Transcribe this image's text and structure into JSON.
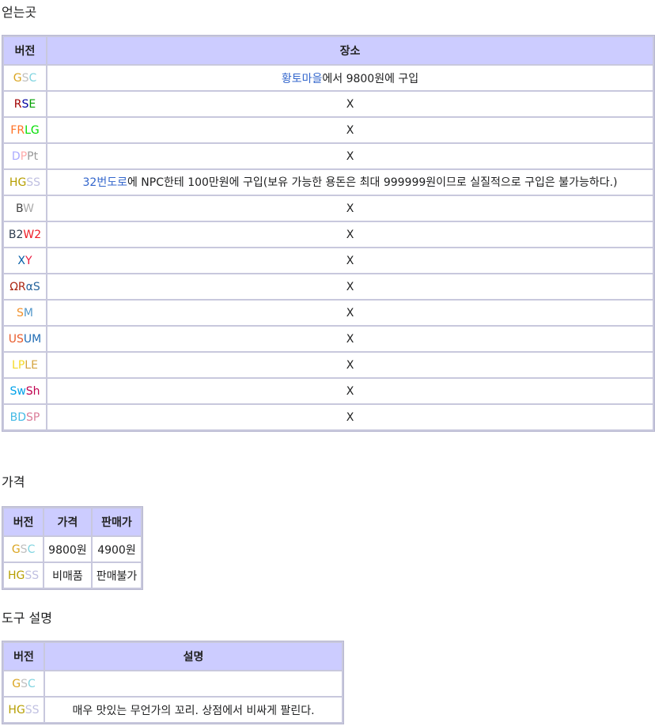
{
  "sections": {
    "obtain_title": "얻는곳",
    "price_title": "가격",
    "desc_title": "도구 설명"
  },
  "obtain_table": {
    "headers": [
      "버전",
      "장소"
    ],
    "rows": [
      {
        "version": [
          {
            "t": "G",
            "c": "#DAA520"
          },
          {
            "t": "S",
            "c": "#C0C0C0"
          },
          {
            "t": "C",
            "c": "#7FD4E0"
          }
        ],
        "place_link": "황토마을",
        "place_rest": "에서 9800원에 구입"
      },
      {
        "version": [
          {
            "t": "R",
            "c": "#A00000"
          },
          {
            "t": "S",
            "c": "#0000A0"
          },
          {
            "t": "E",
            "c": "#00A000"
          }
        ],
        "place_link": "",
        "place_rest": "X"
      },
      {
        "version": [
          {
            "t": "FR",
            "c": "#FF7327"
          },
          {
            "t": "LG",
            "c": "#00DD00"
          }
        ],
        "place_link": "",
        "place_rest": "X"
      },
      {
        "version": [
          {
            "t": "D",
            "c": "#AAAAFF"
          },
          {
            "t": "P",
            "c": "#FFAAAA"
          },
          {
            "t": "Pt",
            "c": "#999999"
          }
        ],
        "place_link": "",
        "place_rest": "X"
      },
      {
        "version": [
          {
            "t": "H",
            "c": "#B69E00"
          },
          {
            "t": "G",
            "c": "#B69E00"
          },
          {
            "t": "SS",
            "c": "#C0C0E1"
          }
        ],
        "place_link": "32번도로",
        "place_rest": "에 NPC한테 100만원에 구입(보유 가능한 용돈은 최대 999999원이므로 실질적으로 구입은 불가능하다.)"
      },
      {
        "version": [
          {
            "t": "B",
            "c": "#444444"
          },
          {
            "t": "W",
            "c": "#AAAAAA"
          }
        ],
        "place_link": "",
        "place_rest": "X"
      },
      {
        "version": [
          {
            "t": "B2",
            "c": "#303E51"
          },
          {
            "t": "W2",
            "c": "#EE1C25"
          }
        ],
        "place_link": "",
        "place_rest": "X"
      },
      {
        "version": [
          {
            "t": "X",
            "c": "#025DA6"
          },
          {
            "t": "Y",
            "c": "#EA1A3E"
          }
        ],
        "place_link": "",
        "place_rest": "X"
      },
      {
        "version": [
          {
            "t": "ΩR",
            "c": "#AB2813"
          },
          {
            "t": "αS",
            "c": "#26649C"
          }
        ],
        "place_link": "",
        "place_rest": "X"
      },
      {
        "version": [
          {
            "t": "S",
            "c": "#F1912B"
          },
          {
            "t": "M",
            "c": "#5599CA"
          }
        ],
        "place_link": "",
        "place_rest": "X"
      },
      {
        "version": [
          {
            "t": "US",
            "c": "#E95B2B"
          },
          {
            "t": "UM",
            "c": "#226DB5"
          }
        ],
        "place_link": "",
        "place_rest": "X"
      },
      {
        "version": [
          {
            "t": "LP",
            "c": "#F5DA26"
          },
          {
            "t": "LE",
            "c": "#D4A33E"
          }
        ],
        "place_link": "",
        "place_rest": "X"
      },
      {
        "version": [
          {
            "t": "Sw",
            "c": "#00A1E9"
          },
          {
            "t": "Sh",
            "c": "#BF004F"
          }
        ],
        "place_link": "",
        "place_rest": "X"
      },
      {
        "version": [
          {
            "t": "BD",
            "c": "#44BAE5"
          },
          {
            "t": "SP",
            "c": "#DA7D99"
          }
        ],
        "place_link": "",
        "place_rest": "X"
      }
    ]
  },
  "price_table": {
    "headers": [
      "버전",
      "가격",
      "판매가"
    ],
    "rows": [
      {
        "version": [
          {
            "t": "G",
            "c": "#DAA520"
          },
          {
            "t": "S",
            "c": "#C0C0C0"
          },
          {
            "t": "C",
            "c": "#7FD4E0"
          }
        ],
        "price": "9800원",
        "sell": "4900원"
      },
      {
        "version": [
          {
            "t": "H",
            "c": "#B69E00"
          },
          {
            "t": "G",
            "c": "#B69E00"
          },
          {
            "t": "SS",
            "c": "#C0C0E1"
          }
        ],
        "price": "비매품",
        "sell": "판매불가"
      }
    ]
  },
  "desc_table": {
    "headers": [
      "버전",
      "설명"
    ],
    "rows": [
      {
        "version": [
          {
            "t": "G",
            "c": "#DAA520"
          },
          {
            "t": "S",
            "c": "#C0C0C0"
          },
          {
            "t": "C",
            "c": "#7FD4E0"
          }
        ],
        "desc": ""
      },
      {
        "version": [
          {
            "t": "H",
            "c": "#B69E00"
          },
          {
            "t": "G",
            "c": "#B69E00"
          },
          {
            "t": "SS",
            "c": "#C0C0E1"
          }
        ],
        "desc": "매우 맛있는 무언가의 꼬리. 상점에서 비싸게 팔린다."
      }
    ]
  }
}
